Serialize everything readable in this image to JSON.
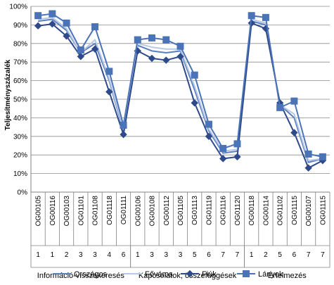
{
  "chart_data": {
    "type": "line",
    "ylabel": "Teljesítményszázalék",
    "ylim": [
      0,
      100
    ],
    "yticks": [
      "0%",
      "10%",
      "20%",
      "30%",
      "40%",
      "50%",
      "60%",
      "70%",
      "80%",
      "90%",
      "100%"
    ],
    "grid": true,
    "legend": "bottom",
    "categories": [
      "OG00105",
      "OG00116",
      "OG00103",
      "OG01101",
      "OG01108",
      "OG01118",
      "OG01111",
      "OG00106",
      "OG00108",
      "OG00112",
      "OG01105",
      "OG01113",
      "OG01119",
      "OG01116",
      "OG01120",
      "OG00118",
      "OG00114",
      "OG01102",
      "OG01115",
      "OG00107",
      "OG01115"
    ],
    "levels": [
      "1",
      "1",
      "2",
      "3",
      "3",
      "4",
      "6",
      "1",
      "3",
      "3",
      "3",
      "5",
      "6",
      "7",
      "7",
      "1",
      "2",
      "5",
      "6",
      "7",
      "7"
    ],
    "groups": [
      {
        "label": "Információ-visszakeresés",
        "start": 0,
        "end": 6
      },
      {
        "label": "Kapcsolatok, összefüggések felismerése",
        "start": 7,
        "end": 14
      },
      {
        "label": "Értelmezés",
        "start": 15,
        "end": 20
      }
    ],
    "series": [
      {
        "name": "Országos",
        "color": "#5b7fbf",
        "marker": "none",
        "values": [
          92,
          93,
          87,
          75,
          80,
          60,
          33,
          79,
          76,
          75,
          76,
          55,
          33,
          21,
          22,
          92,
          90,
          47,
          40,
          16,
          18
        ]
      },
      {
        "name": "Főváros",
        "color": "#b8c9e6",
        "marker": "none",
        "values": [
          93,
          94,
          88,
          75,
          82,
          61,
          34,
          80,
          78,
          77,
          77,
          57,
          34,
          22,
          23,
          93,
          91,
          47,
          42,
          17,
          18
        ]
      },
      {
        "name": "Fiúk",
        "color": "#2e4a8a",
        "marker": "diamond",
        "values": [
          89.5,
          90.5,
          84,
          73,
          77,
          54,
          31,
          76,
          72,
          71,
          73,
          48,
          30,
          18,
          19,
          91,
          88,
          48,
          32,
          13,
          17
        ]
      },
      {
        "name": "Lányok",
        "color": "#4a73b8",
        "marker": "square",
        "values": [
          95,
          96,
          91,
          76.5,
          89,
          65,
          36,
          82,
          83,
          82,
          78.5,
          63,
          36.5,
          23.5,
          26,
          95,
          94,
          45.5,
          49,
          20.5,
          19
        ]
      }
    ]
  }
}
